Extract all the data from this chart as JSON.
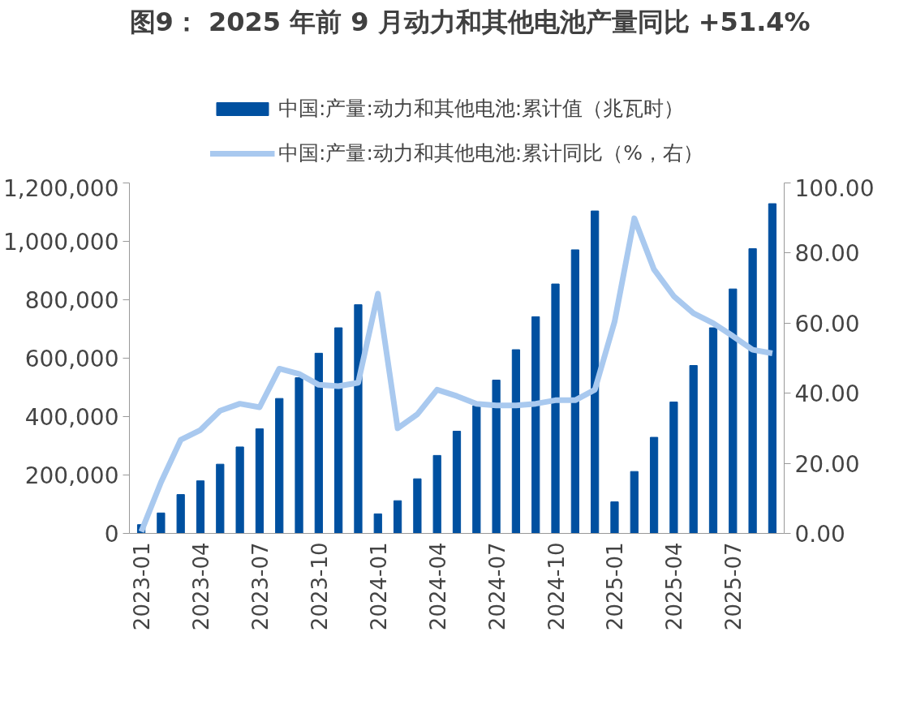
{
  "chart_data": {
    "type": "bar",
    "title": "图9： 2025 年前 9 月动力和其他电池产量同比 +51.4%",
    "categories": [
      "2023-01",
      null,
      null,
      "2023-04",
      null,
      null,
      "2023-07",
      null,
      null,
      "2023-10",
      null,
      null,
      "2024-01",
      null,
      null,
      "2024-04",
      null,
      null,
      "2024-07",
      null,
      null,
      "2024-10",
      null,
      null,
      "2025-01",
      null,
      null,
      "2025-04",
      null,
      null,
      "2025-07",
      null,
      null
    ],
    "series": [
      {
        "name": "中国:产量:动力和其他电池:累计值（兆瓦时）",
        "color": "#0050a0",
        "values": [
          30000,
          70000,
          133000,
          180000,
          237000,
          296000,
          358000,
          462000,
          533000,
          617000,
          704000,
          783000,
          67000,
          112000,
          187000,
          267000,
          350000,
          437000,
          525000,
          629000,
          742000,
          854000,
          971000,
          1104000,
          108000,
          212000,
          329000,
          450000,
          575000,
          704000,
          837000,
          975000,
          1129000
        ]
      },
      {
        "name": "中国:产量:动力和其他电池:累计同比（%，右）",
        "type": "line",
        "axis": "y2",
        "color": "#a9c9ef",
        "values": [
          0.5,
          14.6,
          26.7,
          29.5,
          35,
          37,
          36,
          47,
          45.5,
          42.4,
          42,
          43,
          68.4,
          30,
          34,
          41,
          39.2,
          37,
          36.5,
          36.5,
          37,
          38,
          38,
          41,
          60.4,
          89.9,
          75.3,
          67.7,
          62.8,
          60,
          56.3,
          52.4,
          51.4
        ]
      }
    ],
    "ylim": [
      0,
      1200000
    ],
    "yticks": [
      {
        "value": 0,
        "label": "0"
      },
      {
        "value": 200000,
        "label": "200,000"
      },
      {
        "value": 400000,
        "label": "400,000"
      },
      {
        "value": 600000,
        "label": "600,000"
      },
      {
        "value": 800000,
        "label": "800,000"
      },
      {
        "value": 1000000,
        "label": "1,000,000"
      },
      {
        "value": 1200000,
        "label": "1,200,000"
      }
    ],
    "y2lim": [
      0,
      100
    ],
    "y2ticks": [
      {
        "value": 0,
        "label": "0.00"
      },
      {
        "value": 20,
        "label": "20.00"
      },
      {
        "value": 40,
        "label": "40.00"
      },
      {
        "value": 60,
        "label": "60.00"
      },
      {
        "value": 80,
        "label": "80.00"
      },
      {
        "value": 100,
        "label": "100.00"
      }
    ],
    "grid": false,
    "legend": "top"
  }
}
